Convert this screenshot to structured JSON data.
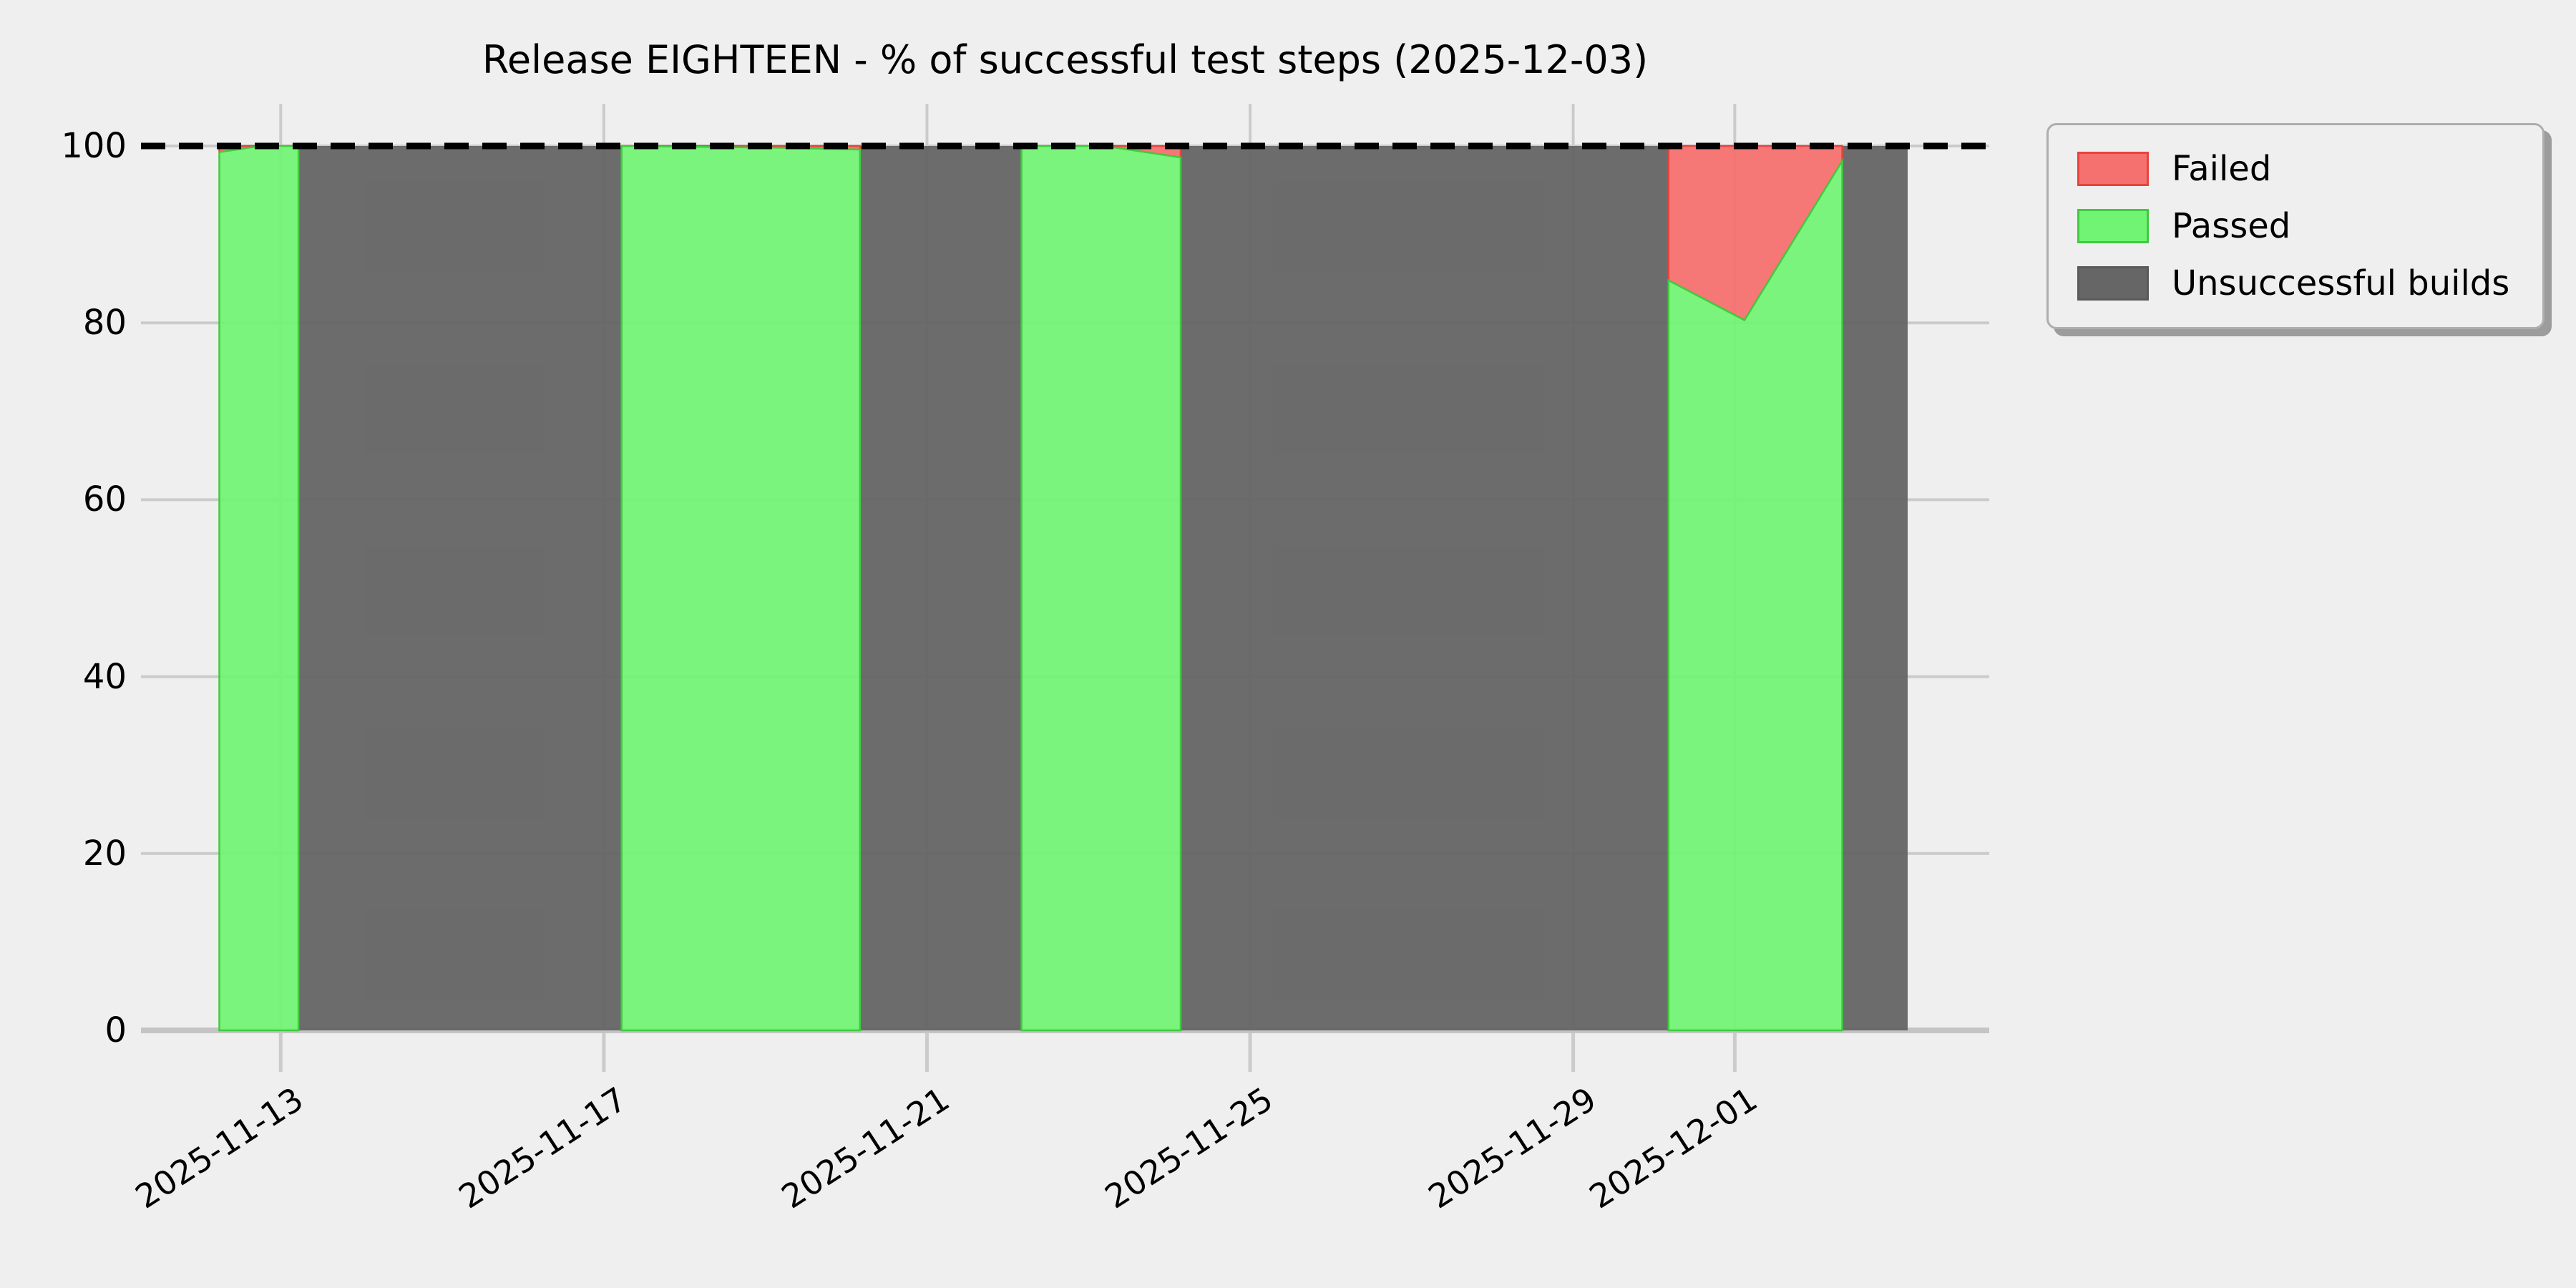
{
  "page": {
    "background": "#efefef"
  },
  "colors": {
    "failed_fill": "#f4716f",
    "failed_edge": "#e8433d",
    "passed_fill": "#71f473",
    "passed_edge": "#3ecc3e",
    "unsuccessful_fill": "#666666",
    "unsuccessful_edge": "#5a5a5a",
    "background": "#efefef",
    "grid": "#cbcbcb",
    "axis_line": "#c4c4c4",
    "reference_line": "#000000",
    "text": "#000000",
    "legend_border": "#aeaeae",
    "legend_shadow": "#9c9c9c"
  },
  "legend": {
    "position": "upper right",
    "entries": [
      {
        "label": "Failed",
        "series": "failed"
      },
      {
        "label": "Passed",
        "series": "passed"
      },
      {
        "label": "Unsuccessful builds",
        "series": "unsuccessful"
      }
    ]
  },
  "chart_data": {
    "type": "area",
    "stacked": true,
    "title": "Release EIGHTEEN - % of successful test steps (2025-12-03)",
    "xlabel": "",
    "ylabel": "",
    "ylim": [
      0,
      100
    ],
    "y_ticks": [
      0,
      20,
      40,
      60,
      80,
      100
    ],
    "grid": true,
    "reference_line_y": 100,
    "legend_position": "upper right",
    "series_labels": [
      "Failed",
      "Passed",
      "Unsuccessful builds"
    ],
    "x_axis": {
      "unit": "days_since_2025-11-13",
      "min_day": -1.73,
      "max_day": 21.15,
      "first_date": "2025-11-13"
    },
    "x_ticks": [
      {
        "day": 0,
        "label": "2025-11-13"
      },
      {
        "day": 4,
        "label": "2025-11-17"
      },
      {
        "day": 8,
        "label": "2025-11-21"
      },
      {
        "day": 12,
        "label": "2025-11-25"
      },
      {
        "day": 16,
        "label": "2025-11-29"
      },
      {
        "day": 18,
        "label": "2025-12-01"
      }
    ],
    "x_tick_rotation_deg": 33,
    "segments": [
      {
        "type": "test_results",
        "points": [
          {
            "day": -0.76,
            "passed": 99.3,
            "failed": 0.7
          },
          {
            "day": -0.25,
            "passed": 100,
            "failed": 0
          },
          {
            "day": 0.22,
            "passed": 100,
            "failed": 0
          }
        ]
      },
      {
        "type": "unsuccessful_builds",
        "start_day": 0.22,
        "end_day": 4.22
      },
      {
        "type": "test_results",
        "points": [
          {
            "day": 4.22,
            "passed": 100,
            "failed": 0
          },
          {
            "day": 6.2,
            "passed": 99.8,
            "failed": 0.2
          },
          {
            "day": 7.17,
            "passed": 99.6,
            "failed": 0.4
          }
        ]
      },
      {
        "type": "unsuccessful_builds",
        "start_day": 7.17,
        "end_day": 9.17
      },
      {
        "type": "test_results",
        "points": [
          {
            "day": 9.17,
            "passed": 100,
            "failed": 0
          },
          {
            "day": 10.2,
            "passed": 100,
            "failed": 0
          },
          {
            "day": 11.14,
            "passed": 98.7,
            "failed": 1.3
          }
        ]
      },
      {
        "type": "unsuccessful_builds",
        "start_day": 11.14,
        "end_day": 17.18
      },
      {
        "type": "test_results",
        "points": [
          {
            "day": 17.18,
            "passed": 84.8,
            "failed": 15.2
          },
          {
            "day": 18.12,
            "passed": 80.3,
            "failed": 19.7
          },
          {
            "day": 19.33,
            "passed": 98.3,
            "failed": 1.7
          }
        ]
      },
      {
        "type": "unsuccessful_builds",
        "start_day": 19.33,
        "end_day": 20.14
      }
    ]
  }
}
